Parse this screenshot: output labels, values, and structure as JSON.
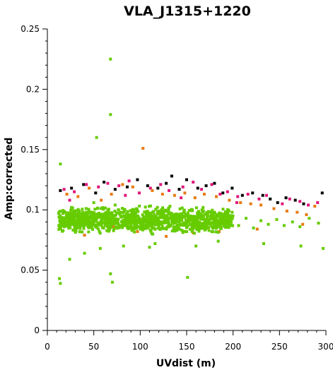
{
  "chart_data": {
    "type": "scatter",
    "title": "VLA_J1315+1220",
    "xlabel": "UVdist (m)",
    "ylabel": "Amp:corrected",
    "xlim": [
      0,
      300
    ],
    "ylim": [
      0,
      0.25
    ],
    "xticks": [
      "0",
      "50",
      "100",
      "150",
      "200",
      "250",
      "300"
    ],
    "yticks": [
      "0",
      "0.05",
      "0.1",
      "0.15",
      "0.2",
      "0.25"
    ],
    "grid": false,
    "legend": "none",
    "series": [
      {
        "color": "#000000",
        "points": [
          [
            14,
            0.116
          ],
          [
            26,
            0.118
          ],
          [
            39,
            0.121
          ],
          [
            52,
            0.114
          ],
          [
            61,
            0.123
          ],
          [
            73,
            0.117
          ],
          [
            86,
            0.119
          ],
          [
            97,
            0.125
          ],
          [
            108,
            0.12
          ],
          [
            119,
            0.118
          ],
          [
            128,
            0.122
          ],
          [
            134,
            0.128
          ],
          [
            142,
            0.117
          ],
          [
            150,
            0.125
          ],
          [
            162,
            0.118
          ],
          [
            171,
            0.12
          ],
          [
            180,
            0.122
          ],
          [
            189,
            0.114
          ],
          [
            199,
            0.118
          ],
          [
            210,
            0.112
          ],
          [
            221,
            0.114
          ],
          [
            232,
            0.112
          ],
          [
            240,
            0.109
          ],
          [
            248,
            0.106
          ],
          [
            257,
            0.11
          ],
          [
            267,
            0.108
          ],
          [
            276,
            0.105
          ],
          [
            296,
            0.114
          ]
        ]
      },
      {
        "color": "#e0157a",
        "points": [
          [
            18,
            0.117
          ],
          [
            29,
            0.115
          ],
          [
            42,
            0.121
          ],
          [
            55,
            0.119
          ],
          [
            65,
            0.122
          ],
          [
            77,
            0.12
          ],
          [
            88,
            0.124
          ],
          [
            99,
            0.114
          ],
          [
            111,
            0.118
          ],
          [
            122,
            0.121
          ],
          [
            131,
            0.116
          ],
          [
            146,
            0.119
          ],
          [
            157,
            0.123
          ],
          [
            166,
            0.117
          ],
          [
            177,
            0.121
          ],
          [
            186,
            0.113
          ],
          [
            194,
            0.115
          ],
          [
            205,
            0.111
          ],
          [
            216,
            0.113
          ],
          [
            228,
            0.109
          ],
          [
            236,
            0.112
          ],
          [
            253,
            0.105
          ],
          [
            261,
            0.109
          ],
          [
            272,
            0.107
          ],
          [
            281,
            0.104
          ],
          [
            291,
            0.106
          ],
          [
            24,
            0.108
          ],
          [
            84,
            0.112
          ],
          [
            144,
            0.11
          ],
          [
            204,
            0.106
          ]
        ]
      },
      {
        "color": "#e87a10",
        "points": [
          [
            21,
            0.113
          ],
          [
            33,
            0.111
          ],
          [
            45,
            0.118
          ],
          [
            58,
            0.108
          ],
          [
            69,
            0.113
          ],
          [
            81,
            0.121
          ],
          [
            92,
            0.119
          ],
          [
            103,
            0.151
          ],
          [
            113,
            0.116
          ],
          [
            124,
            0.113
          ],
          [
            137,
            0.112
          ],
          [
            148,
            0.114
          ],
          [
            159,
            0.11
          ],
          [
            169,
            0.113
          ],
          [
            182,
            0.111
          ],
          [
            196,
            0.108
          ],
          [
            208,
            0.106
          ],
          [
            219,
            0.105
          ],
          [
            230,
            0.104
          ],
          [
            244,
            0.101
          ],
          [
            258,
            0.099
          ],
          [
            269,
            0.098
          ],
          [
            279,
            0.096
          ],
          [
            288,
            0.103
          ],
          [
            40,
            0.079
          ],
          [
            71,
            0.086
          ],
          [
            128,
            0.078
          ],
          [
            185,
            0.082
          ],
          [
            226,
            0.084
          ],
          [
            275,
            0.088
          ],
          [
            97,
            0.082
          ],
          [
            157,
            0.081
          ]
        ]
      },
      {
        "color": "#66cc00",
        "points": [
          [
            14,
            0.138
          ],
          [
            53,
            0.16
          ],
          [
            68,
            0.225
          ],
          [
            68,
            0.179
          ],
          [
            68,
            0.047
          ],
          [
            70,
            0.04
          ],
          [
            13,
            0.043
          ],
          [
            14,
            0.039
          ],
          [
            151,
            0.044
          ],
          [
            24,
            0.059
          ],
          [
            40,
            0.064
          ],
          [
            57,
            0.068
          ],
          [
            82,
            0.07
          ],
          [
            110,
            0.069
          ],
          [
            116,
            0.072
          ],
          [
            160,
            0.07
          ],
          [
            184,
            0.074
          ],
          [
            233,
            0.072
          ],
          [
            273,
            0.07
          ],
          [
            297,
            0.068
          ],
          [
            14,
            0.095
          ],
          [
            20,
            0.088
          ],
          [
            26,
            0.102
          ],
          [
            32,
            0.085
          ],
          [
            38,
            0.098
          ],
          [
            44,
            0.09
          ],
          [
            50,
            0.106
          ],
          [
            56,
            0.082
          ],
          [
            62,
            0.097
          ],
          [
            67,
            0.091
          ],
          [
            73,
            0.104
          ],
          [
            79,
            0.087
          ],
          [
            85,
            0.096
          ],
          [
            91,
            0.083
          ],
          [
            96,
            0.101
          ],
          [
            102,
            0.089
          ],
          [
            108,
            0.094
          ],
          [
            114,
            0.085
          ],
          [
            120,
            0.099
          ],
          [
            126,
            0.09
          ],
          [
            132,
            0.103
          ],
          [
            138,
            0.086
          ],
          [
            144,
            0.095
          ],
          [
            150,
            0.088
          ],
          [
            156,
            0.1
          ],
          [
            162,
            0.084
          ],
          [
            168,
            0.093
          ],
          [
            174,
            0.089
          ],
          [
            180,
            0.098
          ],
          [
            186,
            0.086
          ],
          [
            192,
            0.094
          ],
          [
            198,
            0.09
          ],
          [
            206,
            0.087
          ],
          [
            214,
            0.093
          ],
          [
            222,
            0.085
          ],
          [
            230,
            0.091
          ],
          [
            238,
            0.088
          ],
          [
            247,
            0.092
          ],
          [
            255,
            0.087
          ],
          [
            264,
            0.09
          ],
          [
            272,
            0.086
          ],
          [
            282,
            0.093
          ],
          [
            292,
            0.089
          ]
        ]
      }
    ],
    "dense_band": {
      "color": "#66cc00",
      "x": [
        12,
        200
      ],
      "y": [
        0.078,
        0.105
      ]
    }
  }
}
